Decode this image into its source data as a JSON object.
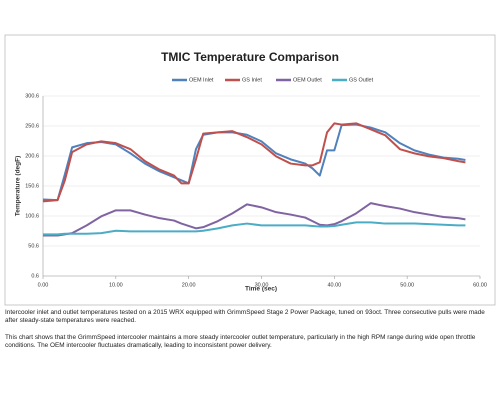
{
  "chart_data": {
    "type": "line",
    "title": "TMIC Temperature Comparison",
    "x_label": "Time (sec)",
    "y_label": "Temperature (degF)",
    "x": [
      0,
      2,
      3,
      4,
      6,
      8,
      10,
      12,
      14,
      16,
      18,
      19,
      20,
      21,
      22,
      24,
      26,
      28,
      30,
      32,
      34,
      36,
      37,
      38,
      39,
      40,
      41,
      43,
      45,
      47,
      49,
      51,
      53,
      55,
      57,
      58
    ],
    "series": [
      {
        "name": "OEM Inlet",
        "color": "#4f81bd",
        "values": [
          128,
          127,
          170,
          215,
          222,
          224,
          220,
          205,
          188,
          175,
          165,
          160,
          155,
          212,
          236,
          240,
          240,
          236,
          225,
          205,
          195,
          188,
          180,
          168,
          210,
          210,
          252,
          253,
          248,
          240,
          222,
          210,
          203,
          198,
          196,
          194
        ]
      },
      {
        "name": "GS Inlet",
        "color": "#c0504d",
        "values": [
          125,
          127,
          160,
          207,
          220,
          225,
          222,
          212,
          192,
          178,
          168,
          155,
          155,
          195,
          238,
          240,
          242,
          232,
          220,
          200,
          188,
          185,
          185,
          190,
          240,
          255,
          253,
          255,
          245,
          235,
          212,
          205,
          200,
          197,
          192,
          190
        ]
      },
      {
        "name": "OEM Outlet",
        "color": "#8064a2",
        "values": [
          68,
          68,
          70,
          72,
          85,
          100,
          110,
          110,
          103,
          97,
          93,
          88,
          84,
          80,
          82,
          92,
          105,
          120,
          115,
          107,
          103,
          98,
          92,
          86,
          85,
          87,
          92,
          105,
          122,
          117,
          113,
          107,
          103,
          99,
          97,
          95
        ]
      },
      {
        "name": "GS Outlet",
        "color": "#4bacc6",
        "values": [
          70,
          70,
          71,
          71,
          71,
          72,
          76,
          75,
          75,
          75,
          75,
          75,
          75,
          75,
          76,
          80,
          85,
          88,
          85,
          85,
          85,
          85,
          84,
          83,
          83,
          84,
          86,
          90,
          90,
          88,
          88,
          88,
          87,
          86,
          85,
          85
        ]
      }
    ],
    "xlim": [
      0,
      60
    ],
    "xticks": [
      {
        "value": 0,
        "label": "0.00"
      },
      {
        "value": 10,
        "label": "10.00"
      },
      {
        "value": 20,
        "label": "20.00"
      },
      {
        "value": 30,
        "label": "30.00"
      },
      {
        "value": 40,
        "label": "40.00"
      },
      {
        "value": 50,
        "label": "50.00"
      },
      {
        "value": 60,
        "label": "60.00"
      }
    ],
    "ylim": [
      0.6,
      300.6
    ],
    "yticks": [
      0.6,
      50.6,
      100.6,
      150.6,
      200.6,
      250.6,
      300.6
    ],
    "grid": true,
    "legend": "top"
  },
  "caption": {
    "paragraphs": [
      "Intercooler inlet and outlet temperatures tested on a 2015 WRX equipped with GrimmSpeed Stage 2 Power Package, tuned on 93oct. Three consecutive pulls were made after steady-state temperatures were reached.",
      "This chart shows that the GrimmSpeed intercooler maintains a more steady intercooler outlet temperature, particularly in the high RPM range during wide open throttle conditions. The OEM intercooler fluctuates dramatically, leading to inconsistent power delivery."
    ]
  }
}
